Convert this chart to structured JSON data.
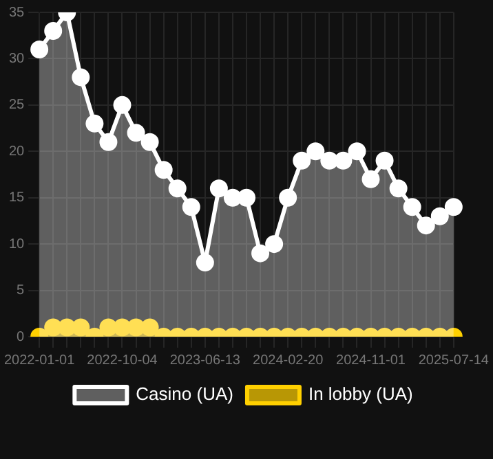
{
  "chart_data": {
    "type": "area",
    "categories": [
      "2022-01-01",
      null,
      null,
      null,
      null,
      null,
      "2022-10-04",
      null,
      null,
      null,
      null,
      null,
      "2023-06-13",
      null,
      null,
      null,
      null,
      null,
      "2024-02-20",
      null,
      null,
      null,
      null,
      null,
      "2024-11-01",
      null,
      null,
      null,
      null,
      null,
      "2025-07-14"
    ],
    "series": [
      {
        "name": "In lobby (UA)",
        "color": "#ffd000",
        "values": [
          0,
          1,
          1,
          1,
          0,
          1,
          1,
          1,
          1,
          0,
          0,
          0,
          0,
          0,
          0,
          0,
          0,
          0,
          0,
          0,
          0,
          0,
          0,
          0,
          0,
          0,
          0,
          0,
          0,
          0,
          0
        ]
      },
      {
        "name": "Casino (UA)",
        "color": "#ffffff",
        "values": [
          31,
          33,
          35,
          28,
          23,
          21,
          25,
          22,
          21,
          18,
          16,
          14,
          8,
          16,
          15,
          15,
          9,
          10,
          15,
          19,
          20,
          19,
          19,
          20,
          17,
          19,
          16,
          14,
          12,
          13,
          14
        ]
      }
    ],
    "ylim": [
      0,
      35
    ],
    "yticks": [
      0,
      5,
      10,
      15,
      20,
      25,
      30,
      35
    ],
    "grid": true,
    "legend": "bottom",
    "marker": "circle"
  }
}
